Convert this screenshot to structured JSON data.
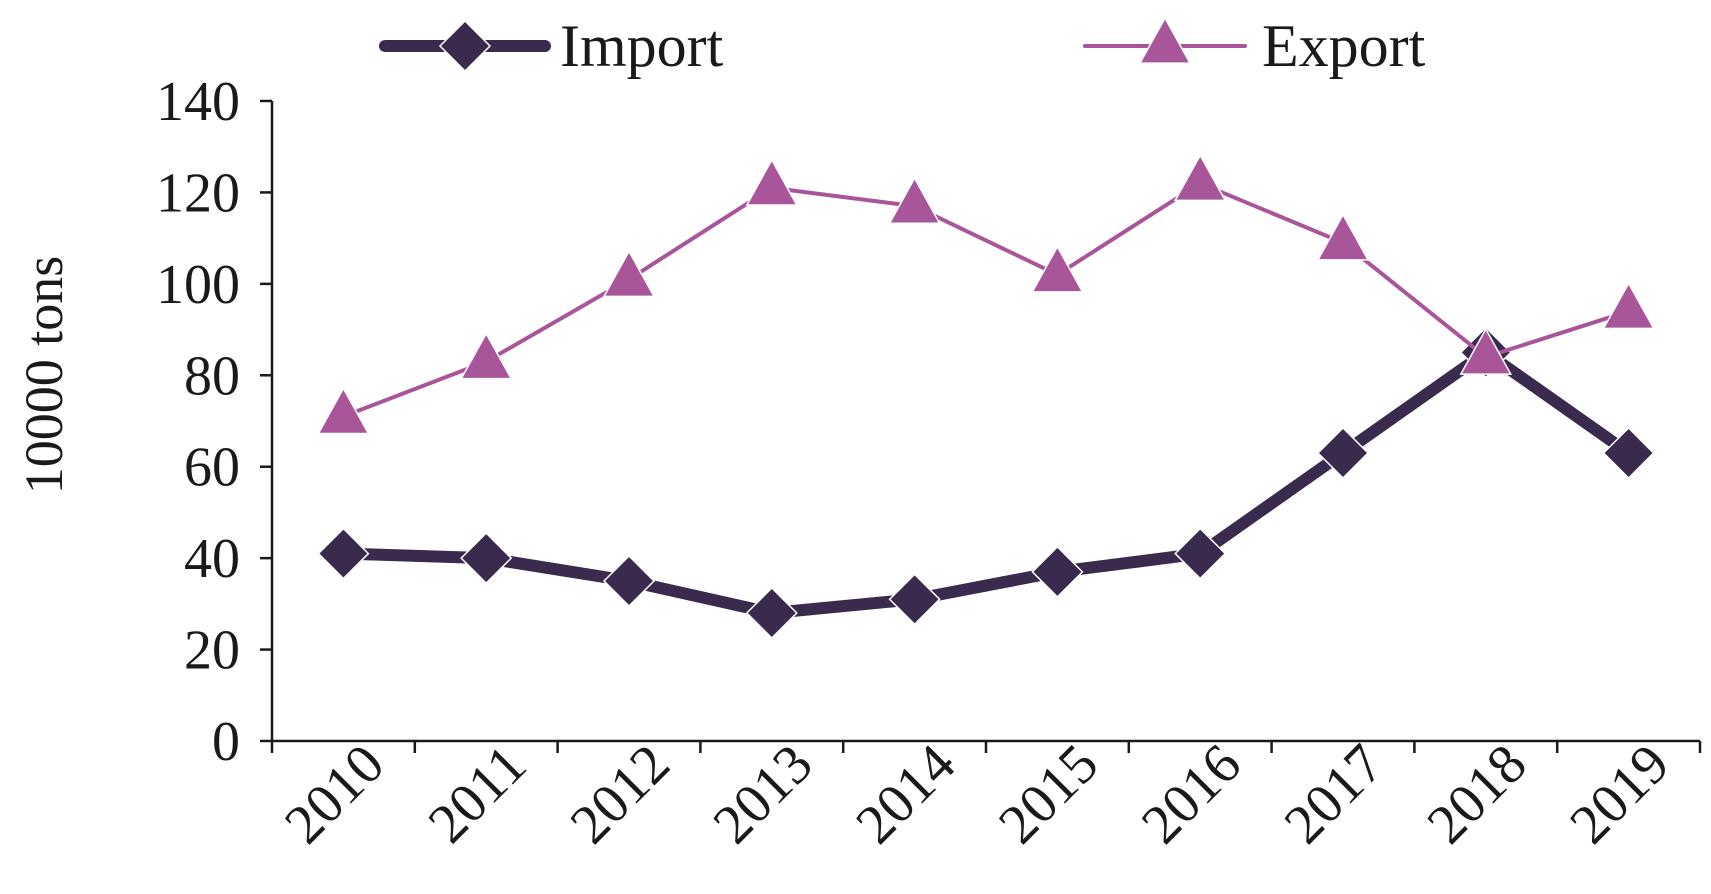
{
  "chart_data": {
    "type": "line",
    "title": "",
    "xlabel": "",
    "ylabel": "10000 tons",
    "ylim": [
      0,
      140
    ],
    "yticks": [
      0,
      20,
      40,
      60,
      80,
      100,
      120,
      140
    ],
    "categories": [
      "2010",
      "2011",
      "2012",
      "2013",
      "2014",
      "2015",
      "2016",
      "2017",
      "2018",
      "2019"
    ],
    "series": [
      {
        "name": "Import",
        "values": [
          41,
          40,
          35,
          28,
          31,
          37,
          41,
          63,
          85,
          63
        ],
        "color": "#3a2a4e",
        "marker": "diamond"
      },
      {
        "name": "Export",
        "values": [
          71,
          83,
          101,
          121,
          117,
          102,
          122,
          109,
          84,
          94
        ],
        "color": "#a8559a",
        "marker": "triangle"
      }
    ],
    "grid": false,
    "legend_position": "top"
  }
}
